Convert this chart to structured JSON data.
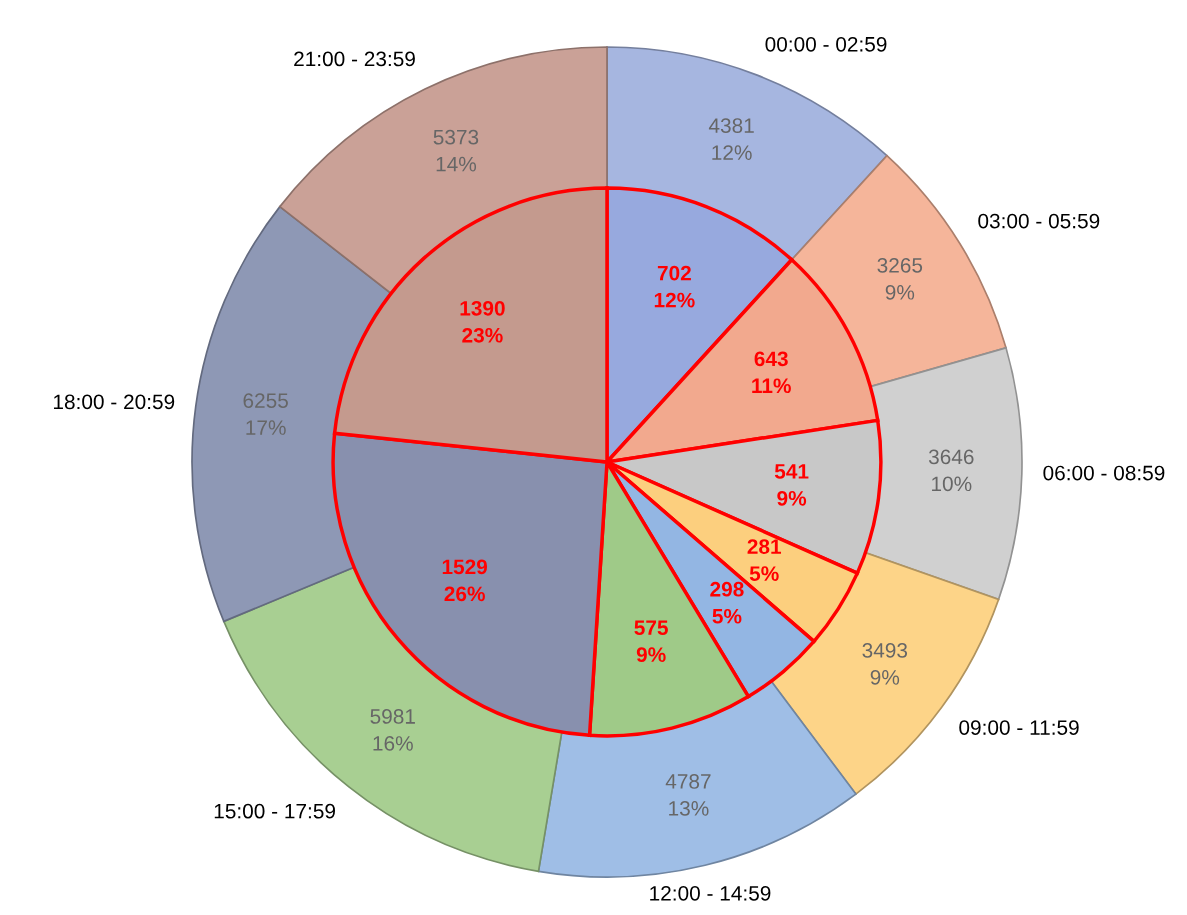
{
  "chart_data": {
    "type": "donut",
    "categories": [
      "00:00 - 02:59",
      "03:00 - 05:59",
      "06:00 - 08:59",
      "09:00 - 11:59",
      "12:00 - 14:59",
      "15:00 - 17:59",
      "18:00 - 20:59",
      "21:00 - 23:59"
    ],
    "series": [
      {
        "values": [
          4381,
          3265,
          3646,
          3493,
          4787,
          5981,
          6255,
          5373
        ],
        "colors": [
          "#a6b6e0",
          "#f5b59a",
          "#d0d0d0",
          "#fdd488",
          "#9fbee6",
          "#a8cf92",
          "#8e98b5",
          "#caa197"
        ],
        "value_labels": [
          "4381\n12%",
          "3265\n9%",
          "3646\n10%",
          "3493\n9%",
          "4787\n13%",
          "5981\n16%",
          "6255\n17%",
          "5373\n14%"
        ]
      },
      {
        "type": "pie",
        "values": [
          702,
          643,
          541,
          281,
          298,
          575,
          1529,
          1390
        ],
        "colors": [
          "#97a9de",
          "#f2a98e",
          "#c8c8c8",
          "#fccf7e",
          "#93b6e3",
          "#9fca88",
          "#8890ae",
          "#c49a8e"
        ],
        "value_labels": [
          "702\n12%",
          "643\n11%",
          "541\n9%",
          "281\n5%",
          "298\n5%",
          "575\n9%",
          "1529\n26%",
          "1390\n23%"
        ]
      }
    ]
  }
}
